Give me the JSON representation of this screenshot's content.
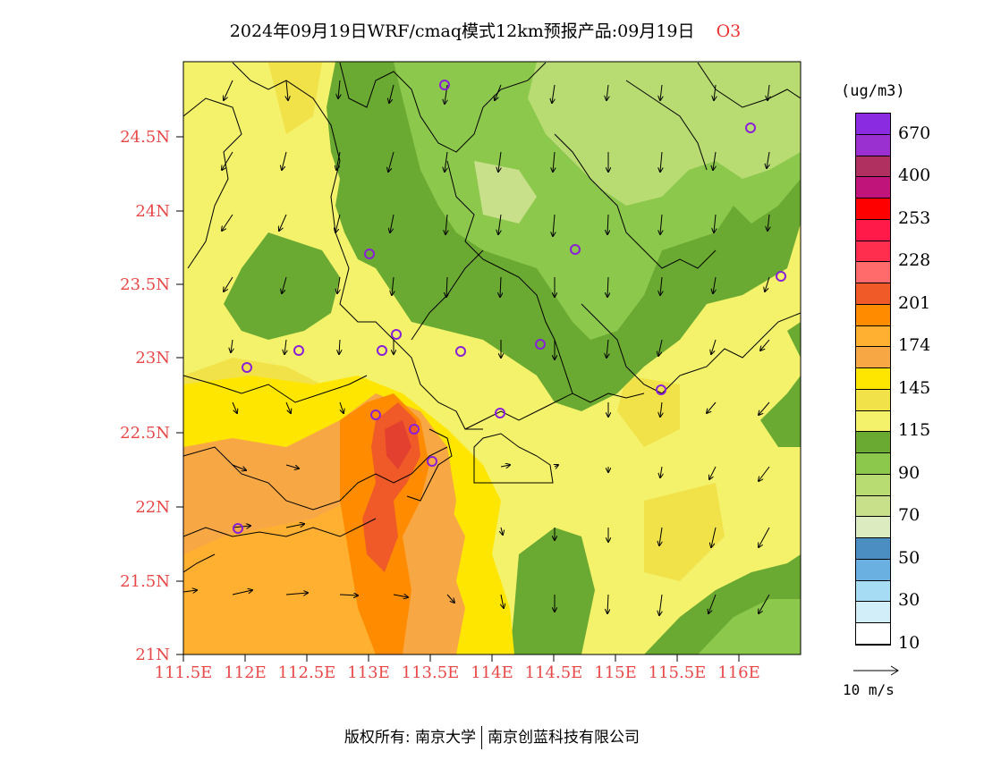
{
  "title": {
    "main": "2024年09月19日WRF/cmaq模式12km预报产品:09月19日",
    "species": "O3",
    "species_color": "#e83030"
  },
  "map": {
    "lat_ticks": [
      "24.5N",
      "24N",
      "23.5N",
      "23N",
      "22.5N",
      "22N",
      "21.5N",
      "21N"
    ],
    "lon_ticks": [
      "111.5E",
      "112E",
      "112.5E",
      "113E",
      "113.5E",
      "114E",
      "114.5E",
      "115E",
      "115.5E",
      "116E"
    ],
    "tick_color": "#e84848",
    "station_marker_color": "#8a1fd8"
  },
  "legend": {
    "unit": "(ug/m3)",
    "colors": [
      "#8a2be2",
      "#9b30d0",
      "#b03060",
      "#c0147a",
      "#ff0000",
      "#ff1a4a",
      "#ff2e4e",
      "#ff6a6a",
      "#f05a28",
      "#ff8c00",
      "#ffb030",
      "#f7a845",
      "#ffe600",
      "#f2e24a",
      "#f4f26a",
      "#6aaa32",
      "#8cc84c",
      "#b8dc72",
      "#c8e08a",
      "#dcecc0",
      "#4a8ec2",
      "#6ab0e0",
      "#a6dcf4",
      "#d2eef8",
      "#ffffff"
    ],
    "labels": [
      "670",
      "400",
      "253",
      "228",
      "201",
      "174",
      "145",
      "115",
      "90",
      "70",
      "50",
      "30",
      "10"
    ]
  },
  "wind_reference": {
    "label": "10 m/s"
  },
  "footer": {
    "left": "版权所有: 南京大学",
    "right": "南京创蓝科技有限公司"
  }
}
